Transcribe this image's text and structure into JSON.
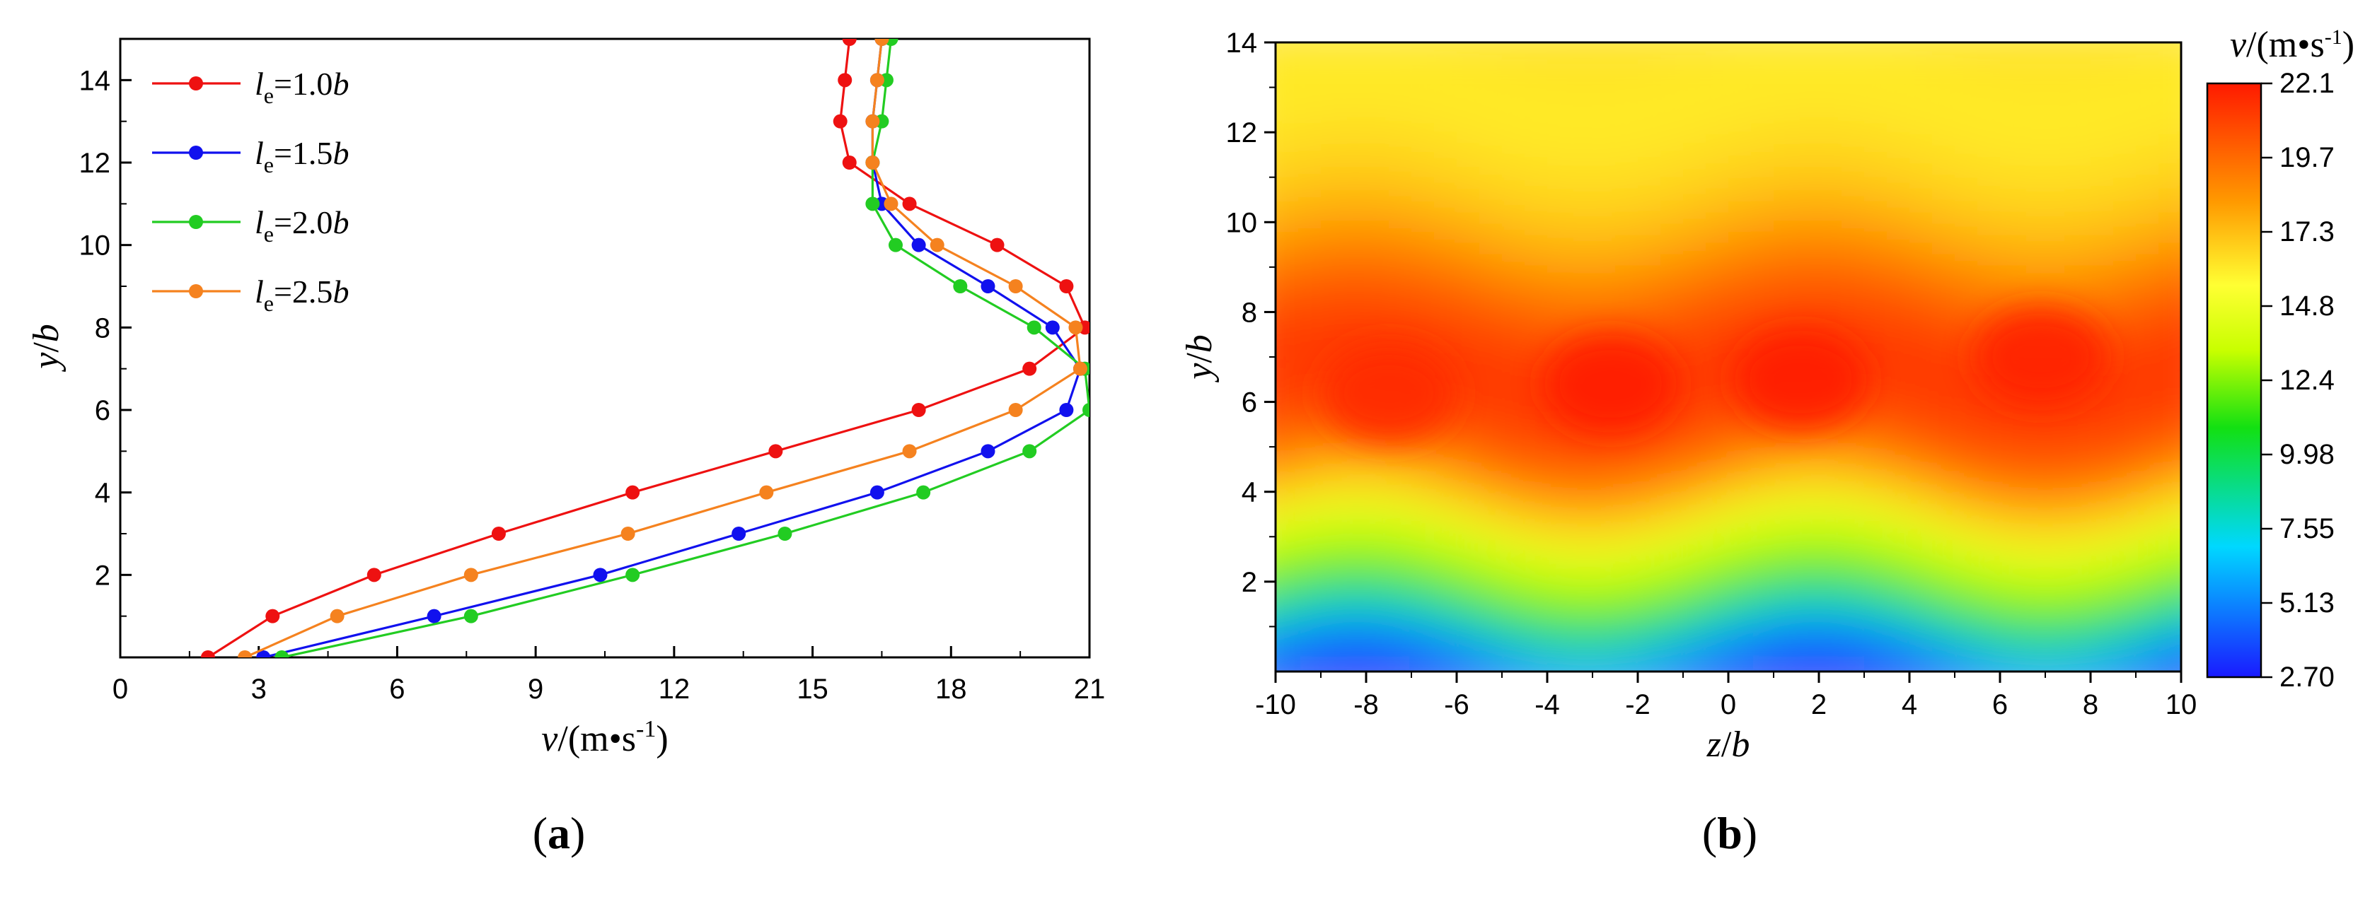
{
  "chart_data": [
    {
      "id": "a",
      "type": "line",
      "panel_label": "(a)",
      "panel_letter": "a",
      "xlabel": "v/(m•s-1)",
      "xlabel_var": "v",
      "xlabel_unit_pre": "/(m•s",
      "xlabel_unit_exp": "-1",
      "xlabel_unit_post": ")",
      "ylabel": "y/b",
      "ylabel_var": "y",
      "ylabel_slash": "/",
      "ylabel_var2": "b",
      "xlim": [
        0,
        21
      ],
      "ylim": [
        0,
        15
      ],
      "xticks": [
        0,
        3,
        6,
        9,
        12,
        15,
        18,
        21
      ],
      "yticks": [
        2,
        4,
        6,
        8,
        10,
        12,
        14
      ],
      "legend_position": "top-left",
      "y": [
        0,
        1,
        2,
        3,
        4,
        5,
        6,
        7,
        8,
        9,
        10,
        11,
        12,
        13,
        14,
        15
      ],
      "series": [
        {
          "name": "le=1.0b",
          "sym": "l",
          "sub": "e",
          "eq": "=1.0",
          "unit": "b",
          "color": "#ee1111",
          "x": [
            1.9,
            3.3,
            5.5,
            8.2,
            11.1,
            14.2,
            17.3,
            19.7,
            20.9,
            20.5,
            19.0,
            17.1,
            15.8,
            15.6,
            15.7,
            15.8
          ]
        },
        {
          "name": "le=1.5b",
          "sym": "l",
          "sub": "e",
          "eq": "=1.5",
          "unit": "b",
          "color": "#1111ee",
          "x": [
            3.1,
            6.8,
            10.4,
            13.4,
            16.4,
            18.8,
            20.5,
            20.8,
            20.2,
            18.8,
            17.3,
            16.5,
            16.3,
            16.3,
            16.4,
            16.5
          ]
        },
        {
          "name": "le=2.0b",
          "sym": "l",
          "sub": "e",
          "eq": "=2.0",
          "unit": "b",
          "color": "#22cc22",
          "x": [
            3.5,
            7.6,
            11.1,
            14.4,
            17.4,
            19.7,
            21.0,
            20.9,
            19.8,
            18.2,
            16.8,
            16.3,
            16.3,
            16.5,
            16.6,
            16.7
          ]
        },
        {
          "name": "le=2.5b",
          "sym": "l",
          "sub": "e",
          "eq": "=2.5",
          "unit": "b",
          "color": "#f5821f",
          "x": [
            2.7,
            4.7,
            7.6,
            11.0,
            14.0,
            17.1,
            19.4,
            20.8,
            20.7,
            19.4,
            17.7,
            16.7,
            16.3,
            16.3,
            16.4,
            16.5
          ]
        }
      ]
    },
    {
      "id": "b",
      "type": "heatmap",
      "panel_label": "(b)",
      "panel_letter": "b",
      "xlabel": "z/b",
      "xlabel_var": "z",
      "xlabel_slash": "/",
      "xlabel_var2": "b",
      "ylabel": "y/b",
      "ylabel_var": "y",
      "ylabel_slash": "/",
      "ylabel_var2": "b",
      "xlim": [
        -10,
        10
      ],
      "ylim": [
        0,
        14
      ],
      "xticks": [
        -10,
        -8,
        -6,
        -4,
        -2,
        0,
        2,
        4,
        6,
        8,
        10
      ],
      "yticks": [
        2,
        4,
        6,
        8,
        10,
        12,
        14
      ],
      "colorbar_title": "v/(m•s-1)",
      "colorbar_var": "v",
      "colorbar_unit_pre": "/(m•s",
      "colorbar_unit_exp": "-1",
      "colorbar_unit_post": ")",
      "colorbar_ticks": [
        "22.1",
        "19.7",
        "17.3",
        "14.8",
        "12.4",
        "9.98",
        "7.55",
        "5.13",
        "2.70"
      ],
      "colorbar_range": [
        2.7,
        22.1
      ],
      "hotspots": [
        {
          "z": -7.5,
          "y": 6.2,
          "v": 21.6
        },
        {
          "z": -2.6,
          "y": 6.4,
          "v": 22.1
        },
        {
          "z": 1.6,
          "y": 6.5,
          "v": 22.1
        },
        {
          "z": 6.9,
          "y": 7.0,
          "v": 21.9
        }
      ],
      "colors": [
        "#1a1aff",
        "#00d8ff",
        "#12e012",
        "#c8ff00",
        "#ffff33",
        "#ff9a00",
        "#ff1a00"
      ]
    }
  ]
}
